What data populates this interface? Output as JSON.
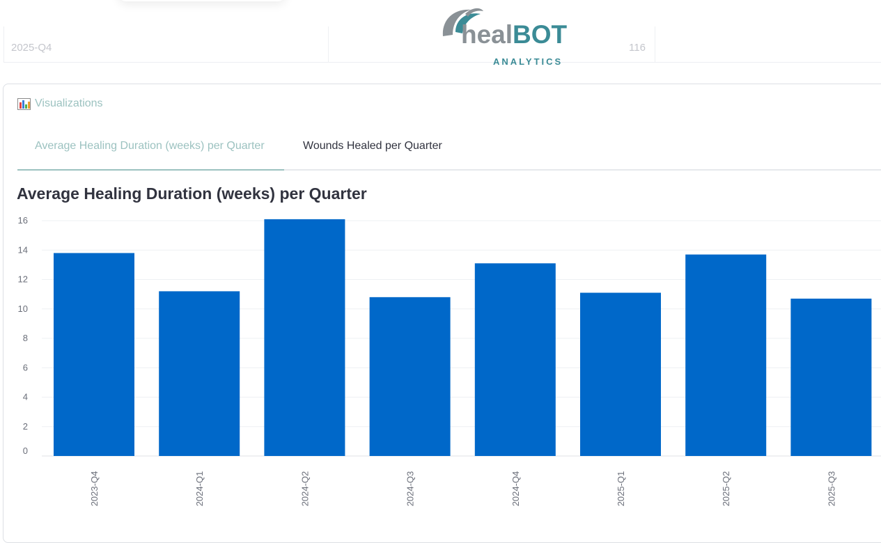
{
  "top_row": {
    "left_value": "2025-Q4",
    "right_value": "116"
  },
  "logo": {
    "word_part1": "heal",
    "word_part2": "BOT",
    "subtitle": "ANALYTICS"
  },
  "section": {
    "title": "Visualizations",
    "icon": "bar-chart-icon"
  },
  "tabs": [
    {
      "label": "Average Healing Duration (weeks) per Quarter",
      "active": true
    },
    {
      "label": "Wounds Healed per Quarter",
      "active": false
    }
  ],
  "colors": {
    "bar": "#0068c9",
    "accent": "#9cc2c0",
    "logo_teal": "#3b8b96"
  },
  "chart_data": {
    "type": "bar",
    "title": "Average Healing Duration (weeks) per Quarter",
    "categories": [
      "2023-Q4",
      "2024-Q1",
      "2024-Q2",
      "2024-Q3",
      "2024-Q4",
      "2025-Q1",
      "2025-Q2",
      "2025-Q3"
    ],
    "values": [
      13.8,
      11.2,
      16.1,
      10.8,
      13.1,
      11.1,
      13.7,
      10.7
    ],
    "yticks": [
      0,
      2,
      4,
      6,
      8,
      10,
      12,
      14,
      16
    ],
    "ylim": [
      0,
      16.1
    ],
    "xlabel": "",
    "ylabel": "",
    "grid": true
  }
}
